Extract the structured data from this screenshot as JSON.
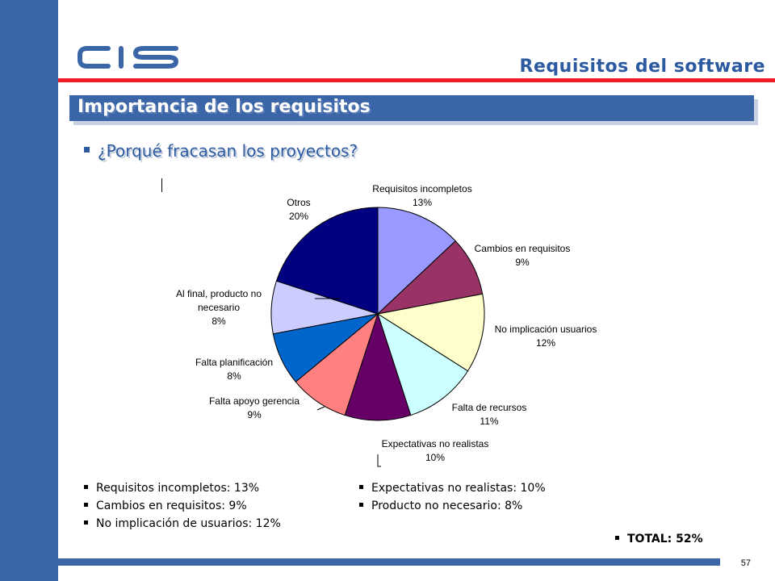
{
  "header": {
    "logo_text": "CIS",
    "section_title": "Requisitos del software",
    "banner_title": "Importancia de los requisitos"
  },
  "question": "¿Porqué fracasan los proyectos?",
  "chart_data": {
    "type": "pie",
    "slices": [
      {
        "label": "Requisitos incompletos",
        "value": 13,
        "value_label": "13%",
        "color": "#9999ff"
      },
      {
        "label": "Cambios en requisitos",
        "value": 9,
        "value_label": "9%",
        "color": "#993366"
      },
      {
        "label": "No implicación usuarios",
        "value": 12,
        "value_label": "12%",
        "color": "#ffffcc"
      },
      {
        "label": "Falta de recursos",
        "value": 11,
        "value_label": "11%",
        "color": "#ccffff"
      },
      {
        "label": "Expectativas no realistas",
        "value": 10,
        "value_label": "10%",
        "color": "#660066"
      },
      {
        "label": "Falta apoyo gerencia",
        "value": 9,
        "value_label": "9%",
        "color": "#ff8080"
      },
      {
        "label": "Falta planificación",
        "value": 8,
        "value_label": "8%",
        "color": "#0066cc"
      },
      {
        "label": "Al final, producto no necesario",
        "value": 8,
        "value_label": "8%",
        "color": "#ccccff"
      },
      {
        "label": "Otros",
        "value": 20,
        "value_label": "20%",
        "color": "#000080"
      }
    ]
  },
  "summary_left": [
    "Requisitos incompletos: 13%",
    "Cambios en requisitos: 9%",
    "No implicación de usuarios: 12%"
  ],
  "summary_right": [
    "Expectativas no realistas: 10%",
    "Producto no necesario: 8%"
  ],
  "total": "TOTAL: 52%",
  "page_number": "57",
  "colors": {
    "brand_blue": "#3a66a8",
    "accent_red": "#ee1c25"
  }
}
